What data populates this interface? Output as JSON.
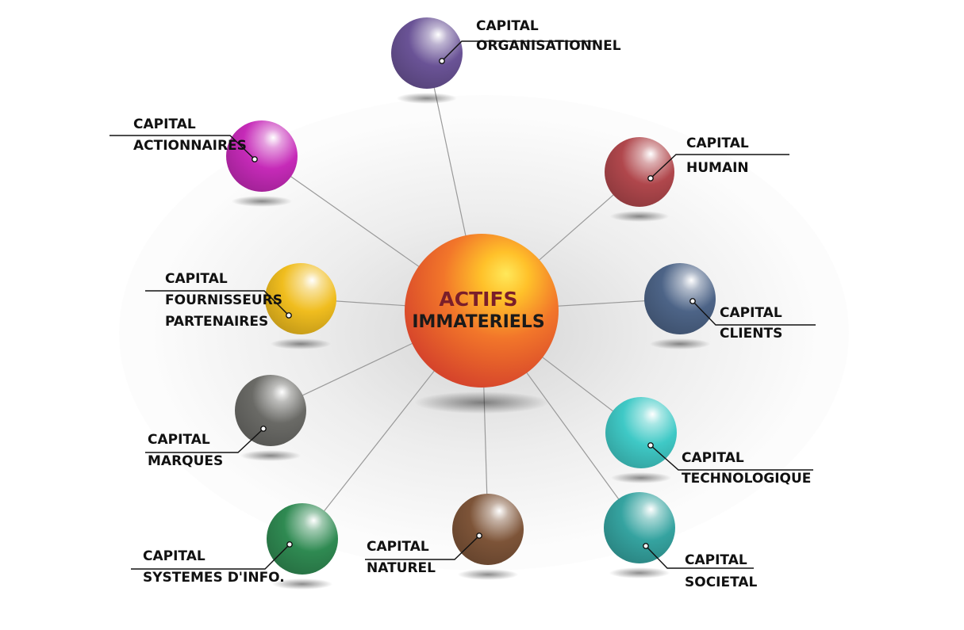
{
  "center": {
    "line1": "ACTIFS",
    "line2": "IMMATERIELS",
    "line1_color": "#7a1e2a",
    "line2_color": "#1a1a1a"
  },
  "nodes": [
    {
      "id": "organisationnel",
      "lines": [
        "CAPITAL",
        "ORGANISATIONNEL"
      ],
      "color": "#6a5396"
    },
    {
      "id": "humain",
      "lines": [
        "CAPITAL",
        "HUMAIN"
      ],
      "color": "#b0474c"
    },
    {
      "id": "clients",
      "lines": [
        "CAPITAL",
        "CLIENTS"
      ],
      "color": "#4d6487"
    },
    {
      "id": "technologique",
      "lines": [
        "CAPITAL",
        "TECHNOLOGIQUE"
      ],
      "color": "#3fc9c6"
    },
    {
      "id": "societal",
      "lines": [
        "CAPITAL",
        "SOCIETAL"
      ],
      "color": "#35a3a0"
    },
    {
      "id": "naturel",
      "lines": [
        "CAPITAL",
        "NATUREL"
      ],
      "color": "#7d5438"
    },
    {
      "id": "systemes",
      "lines": [
        "CAPITAL",
        "SYSTEMES D'INFO."
      ],
      "color": "#2f8a52"
    },
    {
      "id": "marques",
      "lines": [
        "CAPITAL",
        "MARQUES"
      ],
      "color": "#6a6a66"
    },
    {
      "id": "fournisseurs",
      "lines": [
        "CAPITAL",
        "FOURNISSEURS",
        "PARTENAIRES"
      ],
      "color": "#f0bd1e"
    },
    {
      "id": "actionnaires",
      "lines": [
        "CAPITAL",
        "ACTIONNAIRES"
      ],
      "color": "#c62ab8"
    }
  ]
}
